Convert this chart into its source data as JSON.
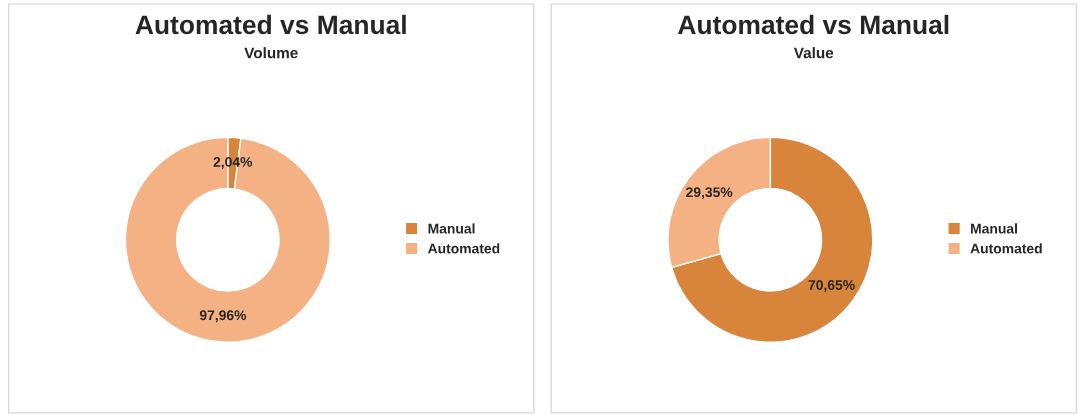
{
  "chart_data": [
    {
      "type": "donut",
      "title": "Automated vs Manual",
      "subtitle": "Volume",
      "categories": [
        "Manual",
        "Automated"
      ],
      "values": [
        2.04,
        97.96
      ],
      "colors": [
        "#d9843b",
        "#f4b183"
      ],
      "value_labels": [
        "2,04%",
        "97,96%"
      ],
      "legend": "right"
    },
    {
      "type": "donut",
      "title": "Automated vs Manual",
      "subtitle": "Value",
      "categories": [
        "Manual",
        "Automated"
      ],
      "values": [
        70.65,
        29.35
      ],
      "colors": [
        "#d9843b",
        "#f4b183"
      ],
      "value_labels": [
        "70,65%",
        "29,35%"
      ],
      "legend": "right"
    }
  ]
}
